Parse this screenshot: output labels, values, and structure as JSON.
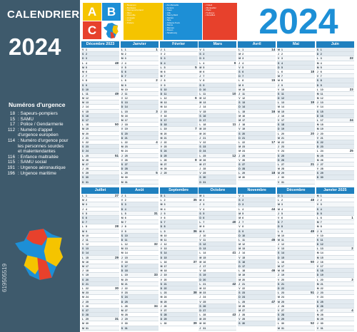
{
  "sidebar": {
    "title": "CALENDRIER",
    "year": "2024",
    "urgence_heading": "Numéros d'urgence",
    "urgence": [
      {
        "num": "18",
        "label": ": Sapeurs-pompiers"
      },
      {
        "num": "15",
        "label": ": SAMU"
      },
      {
        "num": "17",
        "label": ": Police / Gendarmerie"
      },
      {
        "num": "112",
        "label": ": Numéro d'appel"
      },
      {
        "num": "",
        "label": "d'urgence européen"
      },
      {
        "num": "114",
        "label": ": Numéro d'urgence pour"
      },
      {
        "num": "",
        "label": "les personnes sourdes"
      },
      {
        "num": "",
        "label": "et malentendantes"
      },
      {
        "num": "116",
        "label": ": Enfance maltraitée"
      },
      {
        "num": "115",
        "label": ": SAMU social"
      },
      {
        "num": "191",
        "label": ": Urgence aéronautique"
      },
      {
        "num": "196",
        "label": ": Urgence maritime"
      }
    ],
    "watermark_id": "619505519"
  },
  "header": {
    "abc": {
      "a": "A",
      "b": "B",
      "c": "C"
    },
    "year": "2024",
    "zone_a_lines": [
      "Besançon",
      "Bordeaux",
      "Clermont-Ferrand",
      "Dijon",
      "Grenoble",
      "Limoges",
      "Lyon",
      "Poitiers"
    ],
    "zone_b_lines": [
      "Aix-Marseille",
      "Amiens",
      "Caen",
      "Lille",
      "Nancy-Metz",
      "Nantes",
      "Nice",
      "Orléans-Tours",
      "Reims",
      "Rennes",
      "Rouen",
      "Strasbourg"
    ],
    "zone_c_lines": [
      "Créteil",
      "Montpellier",
      "Paris",
      "Toulouse",
      "Versailles"
    ]
  },
  "colors": {
    "zone_a": "#f5c400",
    "zone_b": "#1d8fd6",
    "zone_c": "#e7412c",
    "sidebar": "#3e5a6c",
    "month_head": "#1f80bf"
  },
  "row1": [
    {
      "name": "Décembre 2023",
      "start_dow": 4,
      "days": 31,
      "first_week": 48
    },
    {
      "name": "Janvier",
      "start_dow": 0,
      "days": 31,
      "first_week": 1
    },
    {
      "name": "Février",
      "start_dow": 3,
      "days": 29,
      "first_week": 5
    },
    {
      "name": "Mars",
      "start_dow": 4,
      "days": 31,
      "first_week": 9
    },
    {
      "name": "Avril",
      "start_dow": 0,
      "days": 30,
      "first_week": 14
    },
    {
      "name": "Mai",
      "start_dow": 2,
      "days": 31,
      "first_week": 18
    },
    {
      "name": "Juin",
      "start_dow": 5,
      "days": 30,
      "first_week": 22
    }
  ],
  "row2": [
    {
      "name": "Juillet",
      "start_dow": 0,
      "days": 31,
      "first_week": 27
    },
    {
      "name": "Août",
      "start_dow": 3,
      "days": 31,
      "first_week": 31
    },
    {
      "name": "Septembre",
      "start_dow": 6,
      "days": 30,
      "first_week": 35
    },
    {
      "name": "Octobre",
      "start_dow": 1,
      "days": 31,
      "first_week": 40
    },
    {
      "name": "Novembre",
      "start_dow": 4,
      "days": 30,
      "first_week": 44
    },
    {
      "name": "Décembre",
      "start_dow": 6,
      "days": 31,
      "first_week": 48
    },
    {
      "name": "Janvier 2025",
      "start_dow": 2,
      "days": 31,
      "first_week": 1
    }
  ],
  "dow_letters": [
    "L",
    "M",
    "M",
    "J",
    "V",
    "S",
    "D"
  ]
}
